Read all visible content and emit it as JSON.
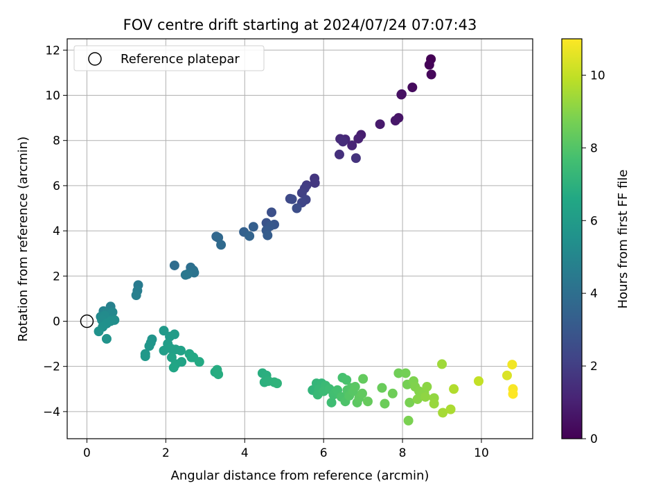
{
  "chart_data": {
    "type": "scatter",
    "title": "FOV centre drift starting at 2024/07/24 07:07:43",
    "xlabel": "Angular distance from reference (arcmin)",
    "ylabel": "Rotation from reference (arcmin)",
    "xlim": [
      -0.5,
      11.3
    ],
    "ylim": [
      -5.2,
      12.5
    ],
    "xticks": [
      "0",
      "2",
      "4",
      "6",
      "8",
      "10"
    ],
    "yticks": [
      "−4",
      "−2",
      "0",
      "2",
      "4",
      "6",
      "8",
      "10",
      "12"
    ],
    "grid": true,
    "legend": {
      "position": "top-left",
      "entries": [
        "Reference platepar"
      ]
    },
    "reference_point": {
      "x": 0,
      "y": 0
    },
    "colorbar": {
      "label": "Hours from first FF file",
      "range": [
        0,
        11
      ],
      "ticks": [
        "0",
        "2",
        "4",
        "6",
        "8",
        "10"
      ],
      "colormap": "viridis"
    },
    "points": [
      [
        8.72,
        11.6,
        0.0
      ],
      [
        8.68,
        11.35,
        0.1
      ],
      [
        8.73,
        10.92,
        0.2
      ],
      [
        8.25,
        10.35,
        0.3
      ],
      [
        7.97,
        10.03,
        0.4
      ],
      [
        7.98,
        10.05,
        0.5
      ],
      [
        7.9,
        9.0,
        0.6
      ],
      [
        7.82,
        8.88,
        0.7
      ],
      [
        7.43,
        8.72,
        0.8
      ],
      [
        6.95,
        8.25,
        0.9
      ],
      [
        6.88,
        8.08,
        1.0
      ],
      [
        6.72,
        7.78,
        1.1
      ],
      [
        6.55,
        8.05,
        1.2
      ],
      [
        6.42,
        8.07,
        1.3
      ],
      [
        6.49,
        7.95,
        1.4
      ],
      [
        6.4,
        7.38,
        1.5
      ],
      [
        6.82,
        7.22,
        1.6
      ],
      [
        5.77,
        6.32,
        1.7
      ],
      [
        5.78,
        6.12,
        1.8
      ],
      [
        5.57,
        6.02,
        1.9
      ],
      [
        5.52,
        5.88,
        2.0
      ],
      [
        5.45,
        5.68,
        2.1
      ],
      [
        5.55,
        5.38,
        2.2
      ],
      [
        5.45,
        5.25,
        2.3
      ],
      [
        5.15,
        5.42,
        2.4
      ],
      [
        5.2,
        5.4,
        2.5
      ],
      [
        5.32,
        5.0,
        2.6
      ],
      [
        4.68,
        4.82,
        2.7
      ],
      [
        4.55,
        4.35,
        2.8
      ],
      [
        4.75,
        4.28,
        2.9
      ],
      [
        4.65,
        4.22,
        3.0
      ],
      [
        4.55,
        4.02,
        3.1
      ],
      [
        4.58,
        3.8,
        3.2
      ],
      [
        4.22,
        4.18,
        3.3
      ],
      [
        3.98,
        3.95,
        3.4
      ],
      [
        4.12,
        3.77,
        3.5
      ],
      [
        3.28,
        3.75,
        3.6
      ],
      [
        3.33,
        3.7,
        3.7
      ],
      [
        3.4,
        3.38,
        3.8
      ],
      [
        2.22,
        2.47,
        3.9
      ],
      [
        2.63,
        2.38,
        4.0
      ],
      [
        2.7,
        2.25,
        4.1
      ],
      [
        2.72,
        2.15,
        4.2
      ],
      [
        2.55,
        2.08,
        4.3
      ],
      [
        2.5,
        2.05,
        4.4
      ],
      [
        1.3,
        1.6,
        4.5
      ],
      [
        1.28,
        1.35,
        4.6
      ],
      [
        1.25,
        1.15,
        4.7
      ],
      [
        0.6,
        0.65,
        4.8
      ],
      [
        0.42,
        0.45,
        4.9
      ],
      [
        0.5,
        0.38,
        5.0
      ],
      [
        0.65,
        0.4,
        5.1
      ],
      [
        0.35,
        0.2,
        5.15
      ],
      [
        0.55,
        0.1,
        5.2
      ],
      [
        0.45,
        0.25,
        5.25
      ],
      [
        0.38,
        0.05,
        5.3
      ],
      [
        0.7,
        0.05,
        5.35
      ],
      [
        0.6,
        0.0,
        5.4
      ],
      [
        0.5,
        -0.1,
        5.45
      ],
      [
        0.4,
        -0.25,
        5.5
      ],
      [
        0.3,
        -0.45,
        5.55
      ],
      [
        0.5,
        -0.78,
        5.6
      ],
      [
        1.65,
        -0.8,
        5.65
      ],
      [
        1.62,
        -0.95,
        5.7
      ],
      [
        1.58,
        -1.1,
        5.75
      ],
      [
        1.48,
        -1.45,
        5.8
      ],
      [
        1.48,
        -1.55,
        5.85
      ],
      [
        1.95,
        -0.42,
        5.9
      ],
      [
        2.1,
        -0.68,
        5.95
      ],
      [
        2.22,
        -0.58,
        6.0
      ],
      [
        2.05,
        -1.0,
        6.05
      ],
      [
        1.95,
        -1.3,
        6.1
      ],
      [
        2.12,
        -1.2,
        6.15
      ],
      [
        2.25,
        -1.25,
        6.2
      ],
      [
        2.38,
        -1.3,
        6.25
      ],
      [
        2.15,
        -1.6,
        6.3
      ],
      [
        2.4,
        -1.8,
        6.35
      ],
      [
        2.25,
        -1.9,
        6.4
      ],
      [
        2.2,
        -2.05,
        6.45
      ],
      [
        2.6,
        -1.45,
        6.5
      ],
      [
        2.65,
        -1.6,
        6.55
      ],
      [
        2.7,
        -1.6,
        6.6
      ],
      [
        2.85,
        -1.8,
        6.65
      ],
      [
        3.25,
        -2.25,
        6.7
      ],
      [
        3.3,
        -2.15,
        6.75
      ],
      [
        3.33,
        -2.35,
        6.8
      ],
      [
        4.45,
        -2.3,
        6.85
      ],
      [
        4.55,
        -2.4,
        6.9
      ],
      [
        4.5,
        -2.7,
        6.95
      ],
      [
        4.6,
        -2.65,
        7.0
      ],
      [
        4.75,
        -2.7,
        7.05
      ],
      [
        4.82,
        -2.75,
        7.1
      ],
      [
        5.72,
        -3.05,
        7.15
      ],
      [
        5.82,
        -2.75,
        7.2
      ],
      [
        5.95,
        -2.75,
        7.25
      ],
      [
        5.88,
        -3.0,
        7.3
      ],
      [
        5.85,
        -3.25,
        7.35
      ],
      [
        6.05,
        -2.85,
        7.4
      ],
      [
        6.0,
        -3.1,
        7.45
      ],
      [
        6.15,
        -3.0,
        7.5
      ],
      [
        6.2,
        -3.6,
        7.55
      ],
      [
        6.25,
        -3.25,
        7.6
      ],
      [
        6.3,
        -3.15,
        7.65
      ],
      [
        6.35,
        -3.05,
        7.7
      ],
      [
        6.48,
        -2.5,
        7.75
      ],
      [
        6.58,
        -2.6,
        7.8
      ],
      [
        6.45,
        -3.35,
        7.85
      ],
      [
        6.55,
        -3.55,
        7.9
      ],
      [
        6.6,
        -3.05,
        7.95
      ],
      [
        6.7,
        -2.95,
        8.0
      ],
      [
        6.65,
        -3.3,
        8.05
      ],
      [
        6.75,
        -3.1,
        8.1
      ],
      [
        6.8,
        -2.9,
        8.15
      ],
      [
        6.85,
        -3.6,
        8.2
      ],
      [
        6.9,
        -3.4,
        8.25
      ],
      [
        6.98,
        -3.2,
        8.3
      ],
      [
        7.0,
        -2.55,
        8.35
      ],
      [
        7.12,
        -3.55,
        8.4
      ],
      [
        7.48,
        -2.95,
        8.45
      ],
      [
        7.55,
        -3.65,
        8.5
      ],
      [
        7.75,
        -3.2,
        8.55
      ],
      [
        7.9,
        -2.3,
        8.6
      ],
      [
        8.08,
        -2.3,
        8.65
      ],
      [
        8.12,
        -2.8,
        8.7
      ],
      [
        8.18,
        -3.6,
        8.75
      ],
      [
        8.15,
        -4.4,
        8.8
      ],
      [
        8.28,
        -2.65,
        8.85
      ],
      [
        8.32,
        -2.9,
        8.9
      ],
      [
        8.42,
        -3.1,
        8.95
      ],
      [
        8.38,
        -3.45,
        9.0
      ],
      [
        8.55,
        -3.15,
        9.05
      ],
      [
        8.62,
        -2.9,
        9.1
      ],
      [
        8.58,
        -3.35,
        9.15
      ],
      [
        8.8,
        -3.4,
        9.2
      ],
      [
        8.8,
        -3.65,
        9.3
      ],
      [
        9.0,
        -1.9,
        9.4
      ],
      [
        9.02,
        -4.05,
        9.5
      ],
      [
        9.22,
        -3.9,
        9.6
      ],
      [
        9.3,
        -3.0,
        9.7
      ],
      [
        9.93,
        -2.65,
        10.0
      ],
      [
        10.65,
        -2.4,
        10.4
      ],
      [
        10.78,
        -1.92,
        10.8
      ],
      [
        10.8,
        -3.0,
        10.9
      ],
      [
        10.8,
        -3.22,
        11.0
      ]
    ]
  }
}
